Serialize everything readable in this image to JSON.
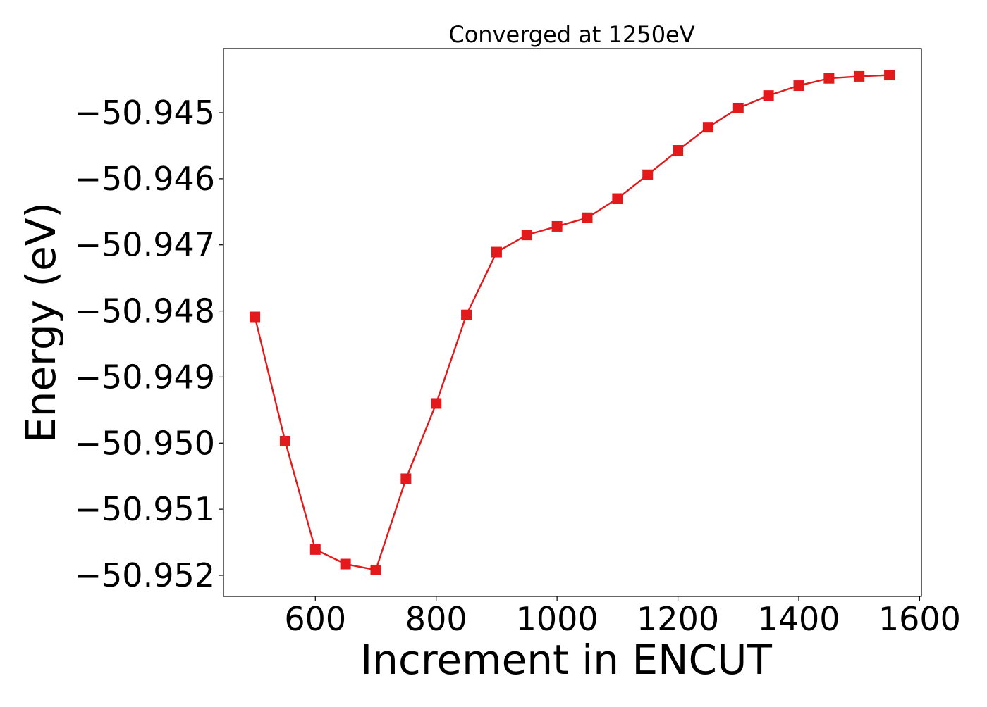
{
  "chart_data": {
    "type": "line",
    "title": "Converged at 1250eV",
    "xlabel": "Increment in ENCUT",
    "ylabel": "Energy (eV)",
    "xlim": [
      448,
      1603
    ],
    "ylim": [
      -50.95232,
      -50.94403
    ],
    "xticks": [
      600,
      800,
      1000,
      1200,
      1400,
      1600
    ],
    "xtick_labels": [
      "600",
      "800",
      "1000",
      "1200",
      "1400",
      "1600"
    ],
    "yticks": [
      -50.945,
      -50.946,
      -50.947,
      -50.948,
      -50.949,
      -50.95,
      -50.951,
      -50.952
    ],
    "ytick_labels": [
      "−50.945",
      "−50.946",
      "−50.947",
      "−50.948",
      "−50.949",
      "−50.950",
      "−50.951",
      "−50.952"
    ],
    "grid": false,
    "series": [
      {
        "color": "#e31a1c",
        "marker": "square",
        "x": [
          500,
          550,
          600,
          650,
          700,
          750,
          800,
          850,
          900,
          950,
          1000,
          1050,
          1100,
          1150,
          1200,
          1250,
          1300,
          1350,
          1400,
          1450,
          1500,
          1550
        ],
        "y": [
          -50.94809,
          -50.94997,
          -50.95161,
          -50.95183,
          -50.95192,
          -50.95054,
          -50.9494,
          -50.94806,
          -50.94711,
          -50.94685,
          -50.94672,
          -50.94659,
          -50.9463,
          -50.94594,
          -50.94557,
          -50.94522,
          -50.94493,
          -50.94474,
          -50.94459,
          -50.94448,
          -50.94445,
          -50.94443
        ]
      }
    ]
  }
}
